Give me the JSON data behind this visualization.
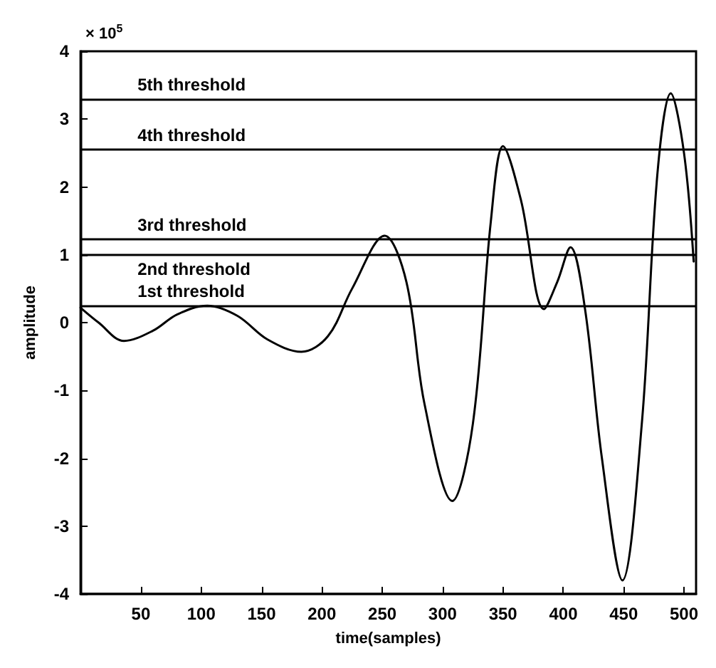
{
  "chart_data": {
    "type": "line",
    "xlabel": "time(samples)",
    "ylabel": "amplitude",
    "annotations": [
      "× 10$^{5}$"
    ],
    "x": [
      0,
      15,
      36,
      60,
      80,
      105,
      130,
      155,
      183,
      205,
      225,
      252,
      270,
      285,
      308,
      325,
      340,
      350,
      365,
      384,
      395,
      406,
      418,
      432,
      449,
      465,
      478,
      489,
      500,
      508
    ],
    "series": [
      {
        "color": "#000000",
        "values": [
          0.22,
          0.0,
          -0.27,
          -0.12,
          0.12,
          0.25,
          0.1,
          -0.25,
          -0.43,
          -0.2,
          0.5,
          1.28,
          0.6,
          -1.2,
          -2.63,
          -1.5,
          1.5,
          2.6,
          1.8,
          0.2,
          0.6,
          1.11,
          0.2,
          -2.0,
          -3.8,
          -1.5,
          2.2,
          3.38,
          2.5,
          0.9
        ]
      }
    ],
    "xlim": [
      0,
      510
    ],
    "xticks": [
      50,
      100,
      150,
      200,
      250,
      300,
      350,
      400,
      450,
      500
    ],
    "ylim": [
      -4,
      4
    ],
    "yticks": [
      -4,
      -3,
      -2,
      -1,
      0,
      1,
      2,
      3,
      4
    ],
    "ref_lines": [
      {
        "axis": "y",
        "value": 0.25,
        "label": "1st threshold",
        "color": "#000000"
      },
      {
        "axis": "y",
        "value": 1.0,
        "label": "2nd threshold",
        "color": "#000000"
      },
      {
        "axis": "y",
        "value": 1.23,
        "label": "3rd threshold",
        "color": "#000000"
      },
      {
        "axis": "y",
        "value": 2.55,
        "label": "4th threshold",
        "color": "#000000"
      },
      {
        "axis": "y",
        "value": 3.3,
        "label": "5th threshold",
        "color": "#000000"
      }
    ],
    "grid": false,
    "marker": "none",
    "line_style": "solid"
  }
}
